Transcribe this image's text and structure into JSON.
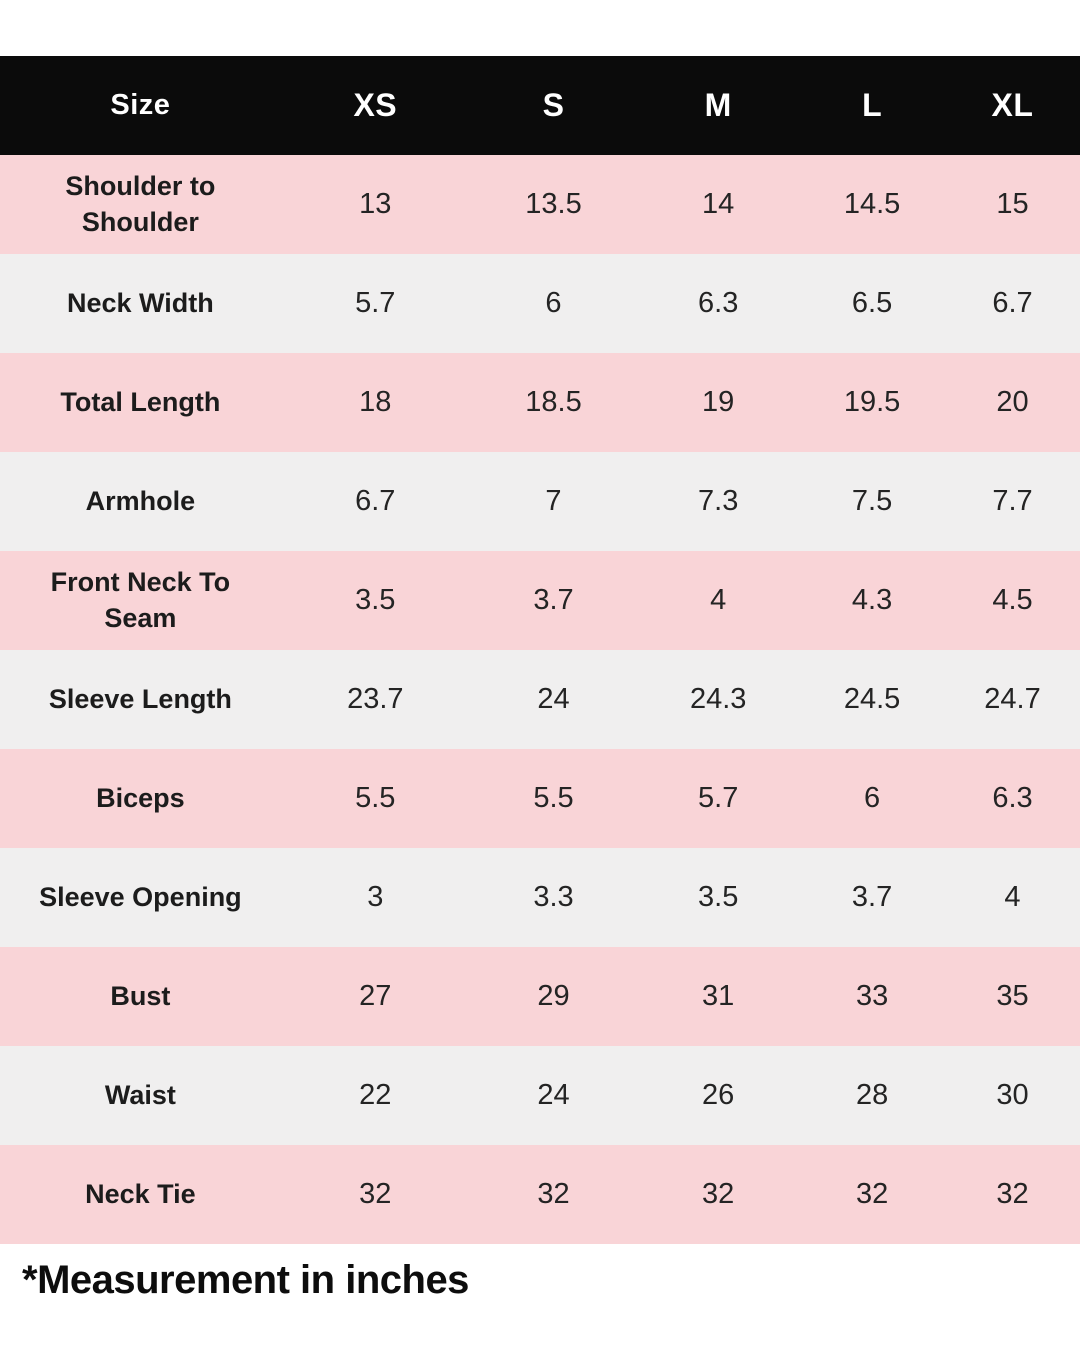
{
  "chart_data": {
    "type": "table",
    "columns": [
      "Size",
      "XS",
      "S",
      "M",
      "L",
      "XL"
    ],
    "rows": [
      {
        "label": "Shoulder to Shoulder",
        "values": [
          "13",
          "13.5",
          "14",
          "14.5",
          "15"
        ]
      },
      {
        "label": "Neck Width",
        "values": [
          "5.7",
          "6",
          "6.3",
          "6.5",
          "6.7"
        ]
      },
      {
        "label": "Total Length",
        "values": [
          "18",
          "18.5",
          "19",
          "19.5",
          "20"
        ]
      },
      {
        "label": "Armhole",
        "values": [
          "6.7",
          "7",
          "7.3",
          "7.5",
          "7.7"
        ]
      },
      {
        "label": "Front Neck To Seam",
        "values": [
          "3.5",
          "3.7",
          "4",
          "4.3",
          "4.5"
        ]
      },
      {
        "label": "Sleeve Length",
        "values": [
          "23.7",
          "24",
          "24.3",
          "24.5",
          "24.7"
        ]
      },
      {
        "label": "Biceps",
        "values": [
          "5.5",
          "5.5",
          "5.7",
          "6",
          "6.3"
        ]
      },
      {
        "label": "Sleeve Opening",
        "values": [
          "3",
          "3.3",
          "3.5",
          "3.7",
          "4"
        ]
      },
      {
        "label": "Bust",
        "values": [
          "27",
          "29",
          "31",
          "33",
          "35"
        ]
      },
      {
        "label": "Waist",
        "values": [
          "22",
          "24",
          "26",
          "28",
          "30"
        ]
      },
      {
        "label": "Neck Tie",
        "values": [
          "32",
          "32",
          "32",
          "32",
          "32"
        ]
      }
    ],
    "footnote": "*Measurement in inches",
    "layout": {
      "row_striping": [
        "pink",
        "gray"
      ],
      "legend": "none",
      "grid": "off"
    },
    "colors": {
      "header_bg": "#0b0b0b",
      "header_text": "#ffffff",
      "row_pink": "#f9d4d7",
      "row_gray": "#f0efef",
      "label_text": "#1c1c1c",
      "value_text": "#242424"
    }
  }
}
